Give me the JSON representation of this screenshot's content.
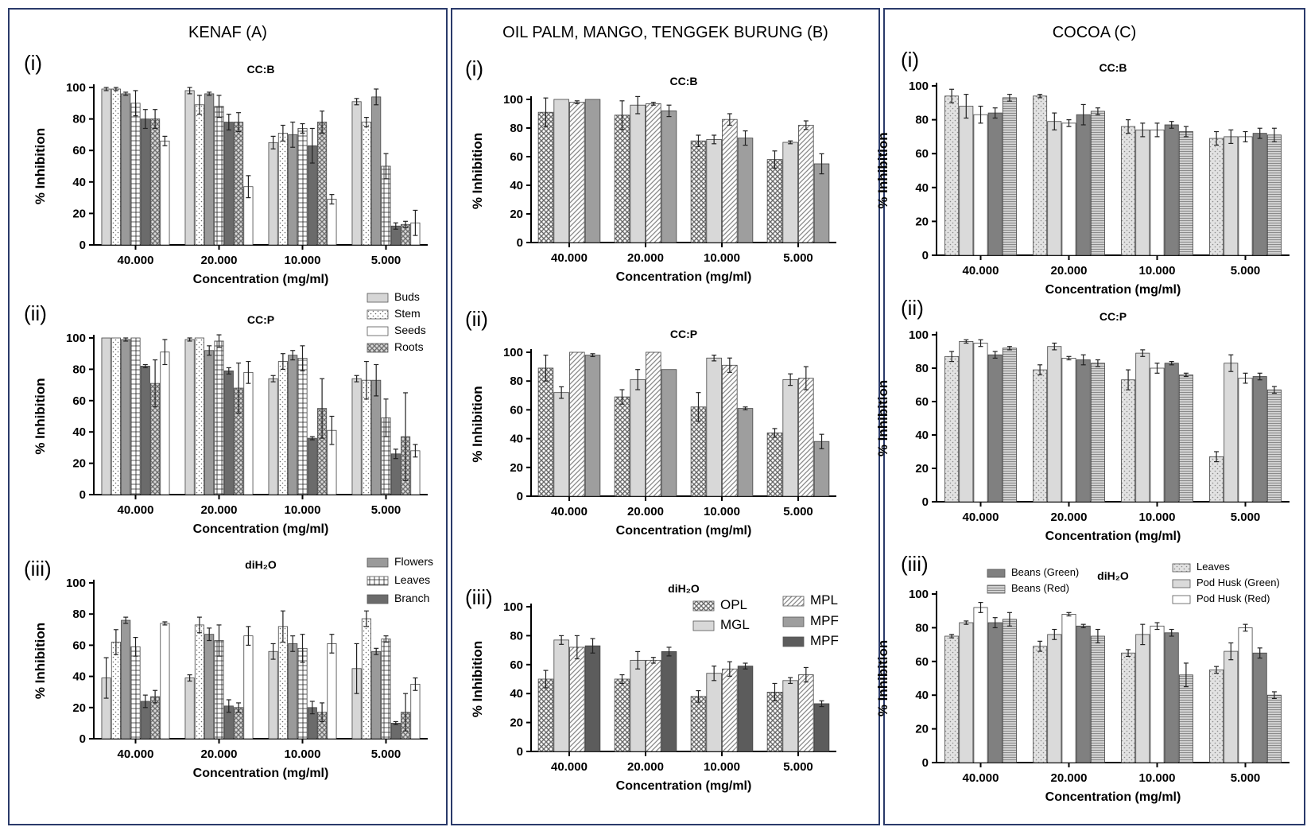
{
  "panels": [
    {
      "title": "KENAF (A)"
    },
    {
      "title": "OIL PALM, MANGO, TENGGEK BURUNG (B)"
    },
    {
      "title": "COCOA (C)"
    }
  ],
  "patterns": {
    "Buds": {
      "kind": "solid",
      "color": "#d6d6d6"
    },
    "Stem": {
      "kind": "dots",
      "bg": "#ffffff",
      "fg": "#6a6a6a"
    },
    "Seeds": {
      "kind": "solid",
      "color": "#ffffff"
    },
    "Roots": {
      "kind": "cross",
      "bg": "#d9d9d9",
      "fg": "#707070"
    },
    "Flowers": {
      "kind": "solid",
      "color": "#9a9a9a"
    },
    "Leaves": {
      "kind": "grid",
      "bg": "#ffffff",
      "fg": "#222222"
    },
    "Branch": {
      "kind": "solid",
      "color": "#6b6b6b"
    },
    "OPL": {
      "kind": "cross",
      "bg": "#ffffff",
      "fg": "#6a6a6a"
    },
    "MGL": {
      "kind": "solid",
      "color": "#d8d8d8"
    },
    "MPL": {
      "kind": "diag",
      "bg": "#ffffff",
      "fg": "#888888"
    },
    "MPF": {
      "kind": "solid",
      "color": "#9e9e9e"
    },
    "MPF2": {
      "kind": "solid",
      "color": "#5c5c5c"
    },
    "cLeaves": {
      "kind": "dots",
      "bg": "#e2e2e2",
      "fg": "#8a8a8a"
    },
    "cPodGreen": {
      "kind": "solid",
      "color": "#dadada"
    },
    "cPodRed": {
      "kind": "solid",
      "color": "#ffffff"
    },
    "cBeansGreen": {
      "kind": "solid",
      "color": "#808080"
    },
    "cBeansRed": {
      "kind": "hstripe",
      "bg": "#d0d0d0",
      "fg": "#8a8a8a"
    }
  },
  "chart_data": [
    {
      "id": "A-i",
      "panel": 0,
      "label": "(i)",
      "title": "CC:B",
      "type": "bar",
      "xlabel": "Concentration (mg/ml)",
      "ylabel": "% Inhibition",
      "ylim": [
        0,
        100
      ],
      "yticks": [
        0,
        20,
        40,
        60,
        80,
        100
      ],
      "categories": [
        "40.000",
        "20.000",
        "10.000",
        "5.000"
      ],
      "series": [
        {
          "name": "Buds",
          "pattern": "Buds",
          "values": [
            99,
            98,
            65,
            91
          ],
          "err": [
            1,
            2,
            4,
            2
          ]
        },
        {
          "name": "Stem",
          "pattern": "Stem",
          "values": [
            99,
            89,
            71,
            78
          ],
          "err": [
            1,
            6,
            5,
            3
          ]
        },
        {
          "name": "Flowers",
          "pattern": "Flowers",
          "values": [
            96,
            96,
            70,
            94
          ],
          "err": [
            1,
            1,
            8,
            5
          ]
        },
        {
          "name": "Leaves",
          "pattern": "Leaves",
          "values": [
            90,
            88,
            74,
            50
          ],
          "err": [
            8,
            7,
            3,
            8
          ]
        },
        {
          "name": "Branch",
          "pattern": "Branch",
          "values": [
            80,
            78,
            63,
            12
          ],
          "err": [
            6,
            5,
            11,
            2
          ]
        },
        {
          "name": "Roots",
          "pattern": "Roots",
          "values": [
            80,
            78,
            78,
            13
          ],
          "err": [
            6,
            6,
            7,
            2
          ]
        },
        {
          "name": "Seeds",
          "pattern": "Seeds",
          "values": [
            66,
            37,
            29,
            14
          ],
          "err": [
            3,
            7,
            3,
            8
          ]
        }
      ]
    },
    {
      "id": "A-ii",
      "panel": 0,
      "label": "(ii)",
      "title": "CC:P",
      "type": "bar",
      "xlabel": "Concentration (mg/ml)",
      "ylabel": "% Inhibition",
      "ylim": [
        0,
        100
      ],
      "yticks": [
        0,
        20,
        40,
        60,
        80,
        100
      ],
      "categories": [
        "40.000",
        "20.000",
        "10.000",
        "5.000"
      ],
      "series": [
        {
          "name": "Buds",
          "pattern": "Buds",
          "values": [
            100,
            99,
            74,
            74
          ],
          "err": [
            0,
            1,
            2,
            2
          ]
        },
        {
          "name": "Stem",
          "pattern": "Stem",
          "values": [
            100,
            100,
            85,
            73
          ],
          "err": [
            0,
            0,
            5,
            12
          ]
        },
        {
          "name": "Flowers",
          "pattern": "Flowers",
          "values": [
            99,
            92,
            89,
            73
          ],
          "err": [
            1,
            3,
            3,
            10
          ]
        },
        {
          "name": "Leaves",
          "pattern": "Leaves",
          "values": [
            100,
            98,
            87,
            49
          ],
          "err": [
            0,
            4,
            8,
            12
          ]
        },
        {
          "name": "Branch",
          "pattern": "Branch",
          "values": [
            82,
            79,
            36,
            26
          ],
          "err": [
            1,
            2,
            1,
            3
          ]
        },
        {
          "name": "Roots",
          "pattern": "Roots",
          "values": [
            71,
            68,
            55,
            37
          ],
          "err": [
            15,
            16,
            19,
            28
          ]
        },
        {
          "name": "Seeds",
          "pattern": "Seeds",
          "values": [
            91,
            78,
            41,
            28
          ],
          "err": [
            8,
            7,
            9,
            4
          ]
        }
      ],
      "legend": [
        "Buds",
        "Stem",
        "Seeds",
        "Roots"
      ]
    },
    {
      "id": "A-iii",
      "panel": 0,
      "label": "(iii)",
      "title": "diH₂O",
      "type": "bar",
      "xlabel": "Concentration (mg/ml)",
      "ylabel": "% Inhibition",
      "ylim": [
        0,
        100
      ],
      "yticks": [
        0,
        20,
        40,
        60,
        80,
        100
      ],
      "categories": [
        "40.000",
        "20.000",
        "10.000",
        "5.000"
      ],
      "series": [
        {
          "name": "Buds",
          "pattern": "Buds",
          "values": [
            39,
            39,
            56,
            45
          ],
          "err": [
            13,
            2,
            5,
            16
          ]
        },
        {
          "name": "Stem",
          "pattern": "Stem",
          "values": [
            62,
            73,
            72,
            77
          ],
          "err": [
            8,
            5,
            10,
            5
          ]
        },
        {
          "name": "Flowers",
          "pattern": "Flowers",
          "values": [
            76,
            67,
            61,
            56
          ],
          "err": [
            2,
            4,
            5,
            2
          ]
        },
        {
          "name": "Leaves",
          "pattern": "Leaves",
          "values": [
            59,
            63,
            58,
            64
          ],
          "err": [
            6,
            10,
            9,
            2
          ]
        },
        {
          "name": "Branch",
          "pattern": "Branch",
          "values": [
            24,
            21,
            20,
            10
          ],
          "err": [
            4,
            4,
            4,
            1
          ]
        },
        {
          "name": "Roots",
          "pattern": "Roots",
          "values": [
            27,
            20,
            17,
            17
          ],
          "err": [
            4,
            3,
            6,
            12
          ]
        },
        {
          "name": "Seeds",
          "pattern": "Seeds",
          "values": [
            74,
            66,
            61,
            35
          ],
          "err": [
            1,
            6,
            6,
            4
          ]
        }
      ],
      "legend": [
        "Flowers",
        "Leaves",
        "Branch"
      ]
    },
    {
      "id": "B-i",
      "panel": 1,
      "label": "(i)",
      "title": "CC:B",
      "type": "bar",
      "xlabel": "Concentration (mg/ml)",
      "ylabel": "% Inhibition",
      "ylim": [
        0,
        100
      ],
      "yticks": [
        0,
        20,
        40,
        60,
        80,
        100
      ],
      "categories": [
        "40.000",
        "20.000",
        "10.000",
        "5.000"
      ],
      "series": [
        {
          "name": "OPL",
          "pattern": "OPL",
          "values": [
            91,
            89,
            71,
            58
          ],
          "err": [
            10,
            10,
            4,
            6
          ]
        },
        {
          "name": "MGL",
          "pattern": "MGL",
          "values": [
            100,
            96,
            72,
            70
          ],
          "err": [
            0,
            6,
            3,
            1
          ]
        },
        {
          "name": "MPL",
          "pattern": "MPL",
          "values": [
            98,
            97,
            86,
            82
          ],
          "err": [
            1,
            1,
            4,
            3
          ]
        },
        {
          "name": "MPF",
          "pattern": "MPF",
          "values": [
            100,
            92,
            73,
            55
          ],
          "err": [
            0,
            4,
            5,
            7
          ]
        }
      ]
    },
    {
      "id": "B-ii",
      "panel": 1,
      "label": "(ii)",
      "title": "CC:P",
      "type": "bar",
      "xlabel": "Concentration (mg/ml)",
      "ylabel": "% Inhibition",
      "ylim": [
        0,
        100
      ],
      "yticks": [
        0,
        20,
        40,
        60,
        80,
        100
      ],
      "categories": [
        "40.000",
        "20.000",
        "10.000",
        "5.000"
      ],
      "series": [
        {
          "name": "OPL",
          "pattern": "OPL",
          "values": [
            89,
            69,
            62,
            44
          ],
          "err": [
            9,
            5,
            10,
            3
          ]
        },
        {
          "name": "MGL",
          "pattern": "MGL",
          "values": [
            72,
            81,
            96,
            81
          ],
          "err": [
            4,
            7,
            2,
            4
          ]
        },
        {
          "name": "MPL",
          "pattern": "MPL",
          "values": [
            100,
            100,
            91,
            82
          ],
          "err": [
            0,
            0,
            5,
            8
          ]
        },
        {
          "name": "MPF",
          "pattern": "MPF",
          "values": [
            98,
            88,
            61,
            38
          ],
          "err": [
            1,
            0,
            1,
            5
          ]
        }
      ]
    },
    {
      "id": "B-iii",
      "panel": 1,
      "label": "(iii)",
      "title": "diH₂O",
      "type": "bar",
      "xlabel": "Concentration (mg/ml)",
      "ylabel": "% Inhibition",
      "ylim": [
        0,
        100
      ],
      "yticks": [
        0,
        20,
        40,
        60,
        80,
        100
      ],
      "categories": [
        "40.000",
        "20.000",
        "10.000",
        "5.000"
      ],
      "series": [
        {
          "name": "OPL",
          "pattern": "OPL",
          "values": [
            50,
            50,
            38,
            41
          ],
          "err": [
            6,
            3,
            4,
            6
          ]
        },
        {
          "name": "MGL",
          "pattern": "MGL",
          "values": [
            77,
            63,
            54,
            49
          ],
          "err": [
            3,
            6,
            5,
            2
          ]
        },
        {
          "name": "MPL",
          "pattern": "MPL",
          "values": [
            72,
            63,
            57,
            53
          ],
          "err": [
            8,
            2,
            5,
            5
          ]
        },
        {
          "name": "MPF",
          "pattern": "MPF2",
          "values": [
            73,
            69,
            59,
            33
          ],
          "err": [
            5,
            3,
            2,
            2
          ]
        }
      ],
      "legend": [
        "OPL",
        "MGL",
        "MPL",
        "MPF",
        "MPF"
      ],
      "legendPatterns": [
        "OPL",
        "MGL",
        "MPL",
        "MPF",
        "MPF2"
      ]
    },
    {
      "id": "C-i",
      "panel": 2,
      "label": "(i)",
      "title": "CC:B",
      "type": "bar",
      "xlabel": "Concentration (mg/ml)",
      "ylabel": "% Inhibition",
      "ylim": [
        0,
        100
      ],
      "yticks": [
        0,
        20,
        40,
        60,
        80,
        100
      ],
      "categories": [
        "40.000",
        "20.000",
        "10.000",
        "5.000"
      ],
      "series": [
        {
          "name": "Leaves",
          "pattern": "cLeaves",
          "values": [
            94,
            94,
            76,
            69
          ],
          "err": [
            4,
            1,
            4,
            4
          ]
        },
        {
          "name": "Pod Husk (Green)",
          "pattern": "cPodGreen",
          "values": [
            88,
            79,
            74,
            70
          ],
          "err": [
            7,
            5,
            4,
            4
          ]
        },
        {
          "name": "Pod Husk (Red)",
          "pattern": "cPodRed",
          "values": [
            83,
            78,
            74,
            70
          ],
          "err": [
            5,
            2,
            4,
            3
          ]
        },
        {
          "name": "Beans (Green)",
          "pattern": "cBeansGreen",
          "values": [
            84,
            83,
            77,
            72
          ],
          "err": [
            3,
            6,
            2,
            3
          ]
        },
        {
          "name": "Beans (Red)",
          "pattern": "cBeansRed",
          "values": [
            93,
            85,
            73,
            71
          ],
          "err": [
            2,
            2,
            3,
            4
          ]
        }
      ]
    },
    {
      "id": "C-ii",
      "panel": 2,
      "label": "(ii)",
      "title": "CC:P",
      "type": "bar",
      "xlabel": "Concentration (mg/ml)",
      "ylabel": "% Inhibition",
      "ylim": [
        0,
        100
      ],
      "yticks": [
        0,
        20,
        40,
        60,
        80,
        100
      ],
      "categories": [
        "40.000",
        "20.000",
        "10.000",
        "5.000"
      ],
      "series": [
        {
          "name": "Leaves",
          "pattern": "cLeaves",
          "values": [
            87,
            79,
            73,
            27
          ],
          "err": [
            3,
            3,
            6,
            3
          ]
        },
        {
          "name": "Pod Husk (Green)",
          "pattern": "cPodGreen",
          "values": [
            96,
            93,
            89,
            83
          ],
          "err": [
            1,
            2,
            2,
            5
          ]
        },
        {
          "name": "Pod Husk (Red)",
          "pattern": "cPodRed",
          "values": [
            95,
            86,
            80,
            74
          ],
          "err": [
            2,
            1,
            3,
            3
          ]
        },
        {
          "name": "Beans (Green)",
          "pattern": "cBeansGreen",
          "values": [
            88,
            85,
            83,
            75
          ],
          "err": [
            2,
            3,
            1,
            2
          ]
        },
        {
          "name": "Beans (Red)",
          "pattern": "cBeansRed",
          "values": [
            92,
            83,
            76,
            67
          ],
          "err": [
            1,
            2,
            1,
            2
          ]
        }
      ]
    },
    {
      "id": "C-iii",
      "panel": 2,
      "label": "(iii)",
      "title": "diH₂O",
      "type": "bar",
      "xlabel": "Concentration (mg/ml)",
      "ylabel": "% Inhibition",
      "ylim": [
        0,
        100
      ],
      "yticks": [
        0,
        20,
        40,
        60,
        80,
        100
      ],
      "categories": [
        "40.000",
        "20.000",
        "10.000",
        "5.000"
      ],
      "series": [
        {
          "name": "Leaves",
          "pattern": "cLeaves",
          "values": [
            75,
            69,
            65,
            55
          ],
          "err": [
            1,
            3,
            2,
            2
          ]
        },
        {
          "name": "Pod Husk (Green)",
          "pattern": "cPodGreen",
          "values": [
            83,
            76,
            76,
            66
          ],
          "err": [
            1,
            3,
            6,
            5
          ]
        },
        {
          "name": "Pod Husk (Red)",
          "pattern": "cPodRed",
          "values": [
            92,
            88,
            81,
            80
          ],
          "err": [
            3,
            1,
            2,
            2
          ]
        },
        {
          "name": "Beans (Green)",
          "pattern": "cBeansGreen",
          "values": [
            83,
            81,
            77,
            65
          ],
          "err": [
            3,
            1,
            2,
            3
          ]
        },
        {
          "name": "Beans (Red)",
          "pattern": "cBeansRed",
          "values": [
            85,
            75,
            52,
            40
          ],
          "err": [
            4,
            4,
            7,
            2
          ]
        }
      ],
      "legend": [
        "Beans (Green)",
        "Beans (Red)",
        "Leaves",
        "Pod Husk (Green)",
        "Pod Husk (Red)"
      ],
      "legendPatterns": [
        "cBeansGreen",
        "cBeansRed",
        "cLeaves",
        "cPodGreen",
        "cPodRed"
      ]
    }
  ]
}
